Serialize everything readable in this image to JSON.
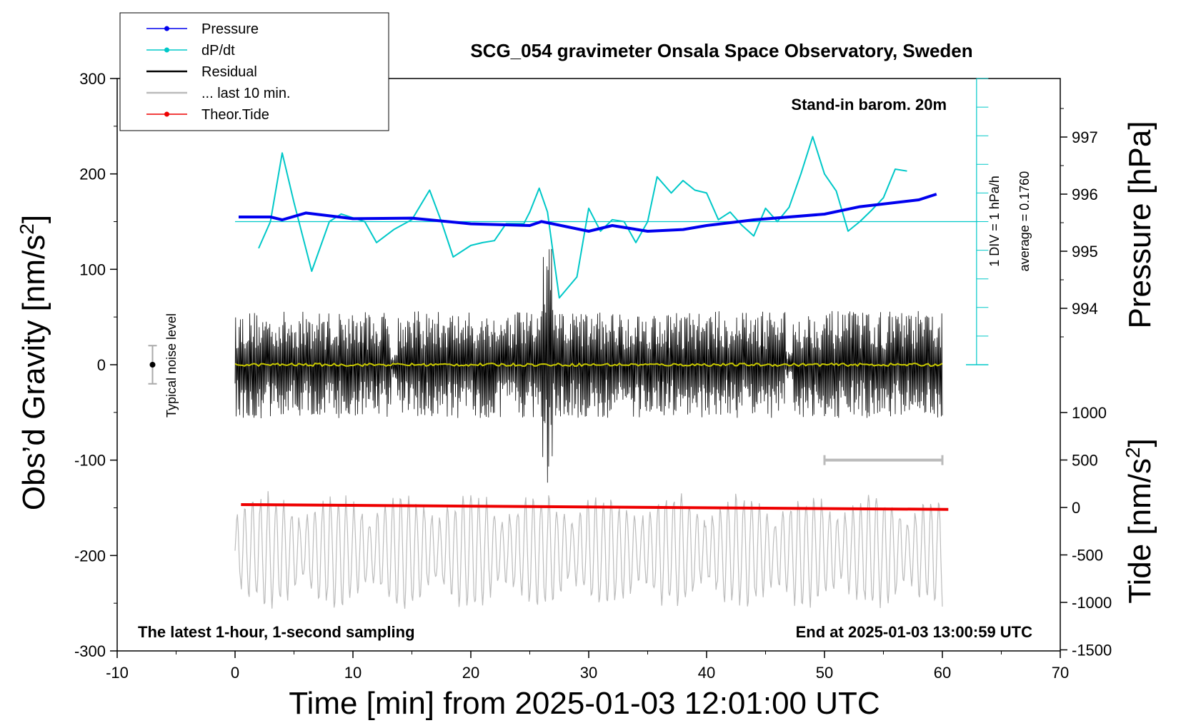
{
  "chart_data": {
    "type": "line",
    "title": "SCG_054 gravimeter Onsala Space Observatory, Sweden",
    "subtitle": "Stand-in barom. 20m",
    "xlabel": "Time [min] from 2025-01-03 12:01:00 UTC",
    "ylabel": "Obs’d Gravity [nm/s",
    "ylabel_sup": "2",
    "ylabel_close": "]",
    "y2_label_pressure": "Pressure [hPa]",
    "y2_label_tide": "Tide [nm/s",
    "y2_label_tide_sup": "2",
    "y2_label_tide_close": "]",
    "xlim": [
      -10,
      70
    ],
    "ylim": [
      -300,
      300
    ],
    "x_ticks": [
      "-10",
      "0",
      "10",
      "20",
      "30",
      "40",
      "50",
      "60",
      "70"
    ],
    "y_ticks": [
      "300",
      "200",
      "100",
      "0",
      "-100",
      "-200",
      "-300"
    ],
    "pressure_ticks": [
      "997",
      "996",
      "995",
      "994"
    ],
    "tide_ticks": [
      "1000",
      "500",
      "0",
      "-500",
      "-1000",
      "-1500"
    ],
    "legend": [
      {
        "label": "Pressure",
        "color": "#0000ee",
        "marker": true
      },
      {
        "label": "dP/dt",
        "color": "#00c8c8",
        "marker": true
      },
      {
        "label": "Residual",
        "color": "#000000",
        "marker": false
      },
      {
        "label": "... last 10 min.",
        "color": "#bbbbbb",
        "marker": false
      },
      {
        "label": "Theor.Tide",
        "color": "#ee0000",
        "marker": true
      }
    ],
    "annotations": {
      "noise": "Typical noise level",
      "scale_div": "1 DIV = 1 hPa/h",
      "scale_avg": "average = 0.1760",
      "bottom_left": "The latest 1-hour, 1-second sampling",
      "bottom_right": "End at 2025-01-03 13:00:59 UTC"
    },
    "series": [
      {
        "name": "Pressure",
        "color": "#0000ee",
        "axis": "pressure",
        "points": [
          [
            0.3,
            995.6
          ],
          [
            3,
            995.6
          ],
          [
            4,
            995.55
          ],
          [
            6,
            995.67
          ],
          [
            10,
            995.57
          ],
          [
            15,
            995.58
          ],
          [
            20,
            995.48
          ],
          [
            25,
            995.45
          ],
          [
            26,
            995.52
          ],
          [
            30,
            995.35
          ],
          [
            32,
            995.45
          ],
          [
            35,
            995.35
          ],
          [
            38,
            995.38
          ],
          [
            40,
            995.45
          ],
          [
            44,
            995.55
          ],
          [
            50,
            995.65
          ],
          [
            53,
            995.78
          ],
          [
            58,
            995.9
          ],
          [
            59.5,
            996.0
          ]
        ]
      },
      {
        "name": "dP/dt",
        "color": "#00c8c8",
        "axis": "gravity",
        "baseline": 150,
        "points": [
          [
            2,
            122
          ],
          [
            3,
            150
          ],
          [
            4,
            222
          ],
          [
            5,
            170
          ],
          [
            6.5,
            98
          ],
          [
            8,
            150
          ],
          [
            9,
            158
          ],
          [
            11,
            150
          ],
          [
            12,
            128
          ],
          [
            13.5,
            142
          ],
          [
            15,
            152
          ],
          [
            16.5,
            183
          ],
          [
            17.5,
            150
          ],
          [
            18.5,
            113
          ],
          [
            20,
            125
          ],
          [
            21,
            128
          ],
          [
            22,
            130
          ],
          [
            23,
            148
          ],
          [
            24.5,
            148
          ],
          [
            25,
            160
          ],
          [
            25.8,
            185
          ],
          [
            26.5,
            160
          ],
          [
            27.5,
            70
          ],
          [
            29,
            92
          ],
          [
            30,
            164
          ],
          [
            31,
            140
          ],
          [
            32,
            152
          ],
          [
            33,
            150
          ],
          [
            34,
            128
          ],
          [
            35,
            150
          ],
          [
            35.8,
            197
          ],
          [
            37,
            180
          ],
          [
            38,
            193
          ],
          [
            39,
            183
          ],
          [
            40,
            180
          ],
          [
            41,
            152
          ],
          [
            42,
            160
          ],
          [
            43,
            146
          ],
          [
            44,
            135
          ],
          [
            45,
            164
          ],
          [
            46,
            150
          ],
          [
            47,
            165
          ],
          [
            48,
            200
          ],
          [
            49,
            239
          ],
          [
            50,
            200
          ],
          [
            51,
            182
          ],
          [
            52,
            140
          ],
          [
            53,
            150
          ],
          [
            54,
            162
          ],
          [
            55,
            175
          ],
          [
            56,
            205
          ],
          [
            57,
            203
          ]
        ]
      },
      {
        "name": "Residual",
        "color": "#000000",
        "axis": "gravity",
        "amplitude": 45,
        "range": [
          0,
          60
        ]
      },
      {
        "name": "Residual smoothed",
        "color": "#c8c800",
        "axis": "gravity",
        "value": 0
      },
      {
        "name": "... last 10 min.",
        "color": "#bbbbbb",
        "axis": "gravity",
        "center": -195,
        "amplitude": 50,
        "range": [
          0,
          60
        ]
      },
      {
        "name": "Theor.Tide",
        "color": "#ee0000",
        "axis": "tide",
        "points": [
          [
            0.5,
            30
          ],
          [
            60.5,
            -20
          ]
        ]
      }
    ],
    "noise_bar": {
      "x": -7,
      "value": 0,
      "half_range": 20
    },
    "scale_bar": {
      "x0": 50,
      "x1": 60,
      "value": -100
    }
  }
}
